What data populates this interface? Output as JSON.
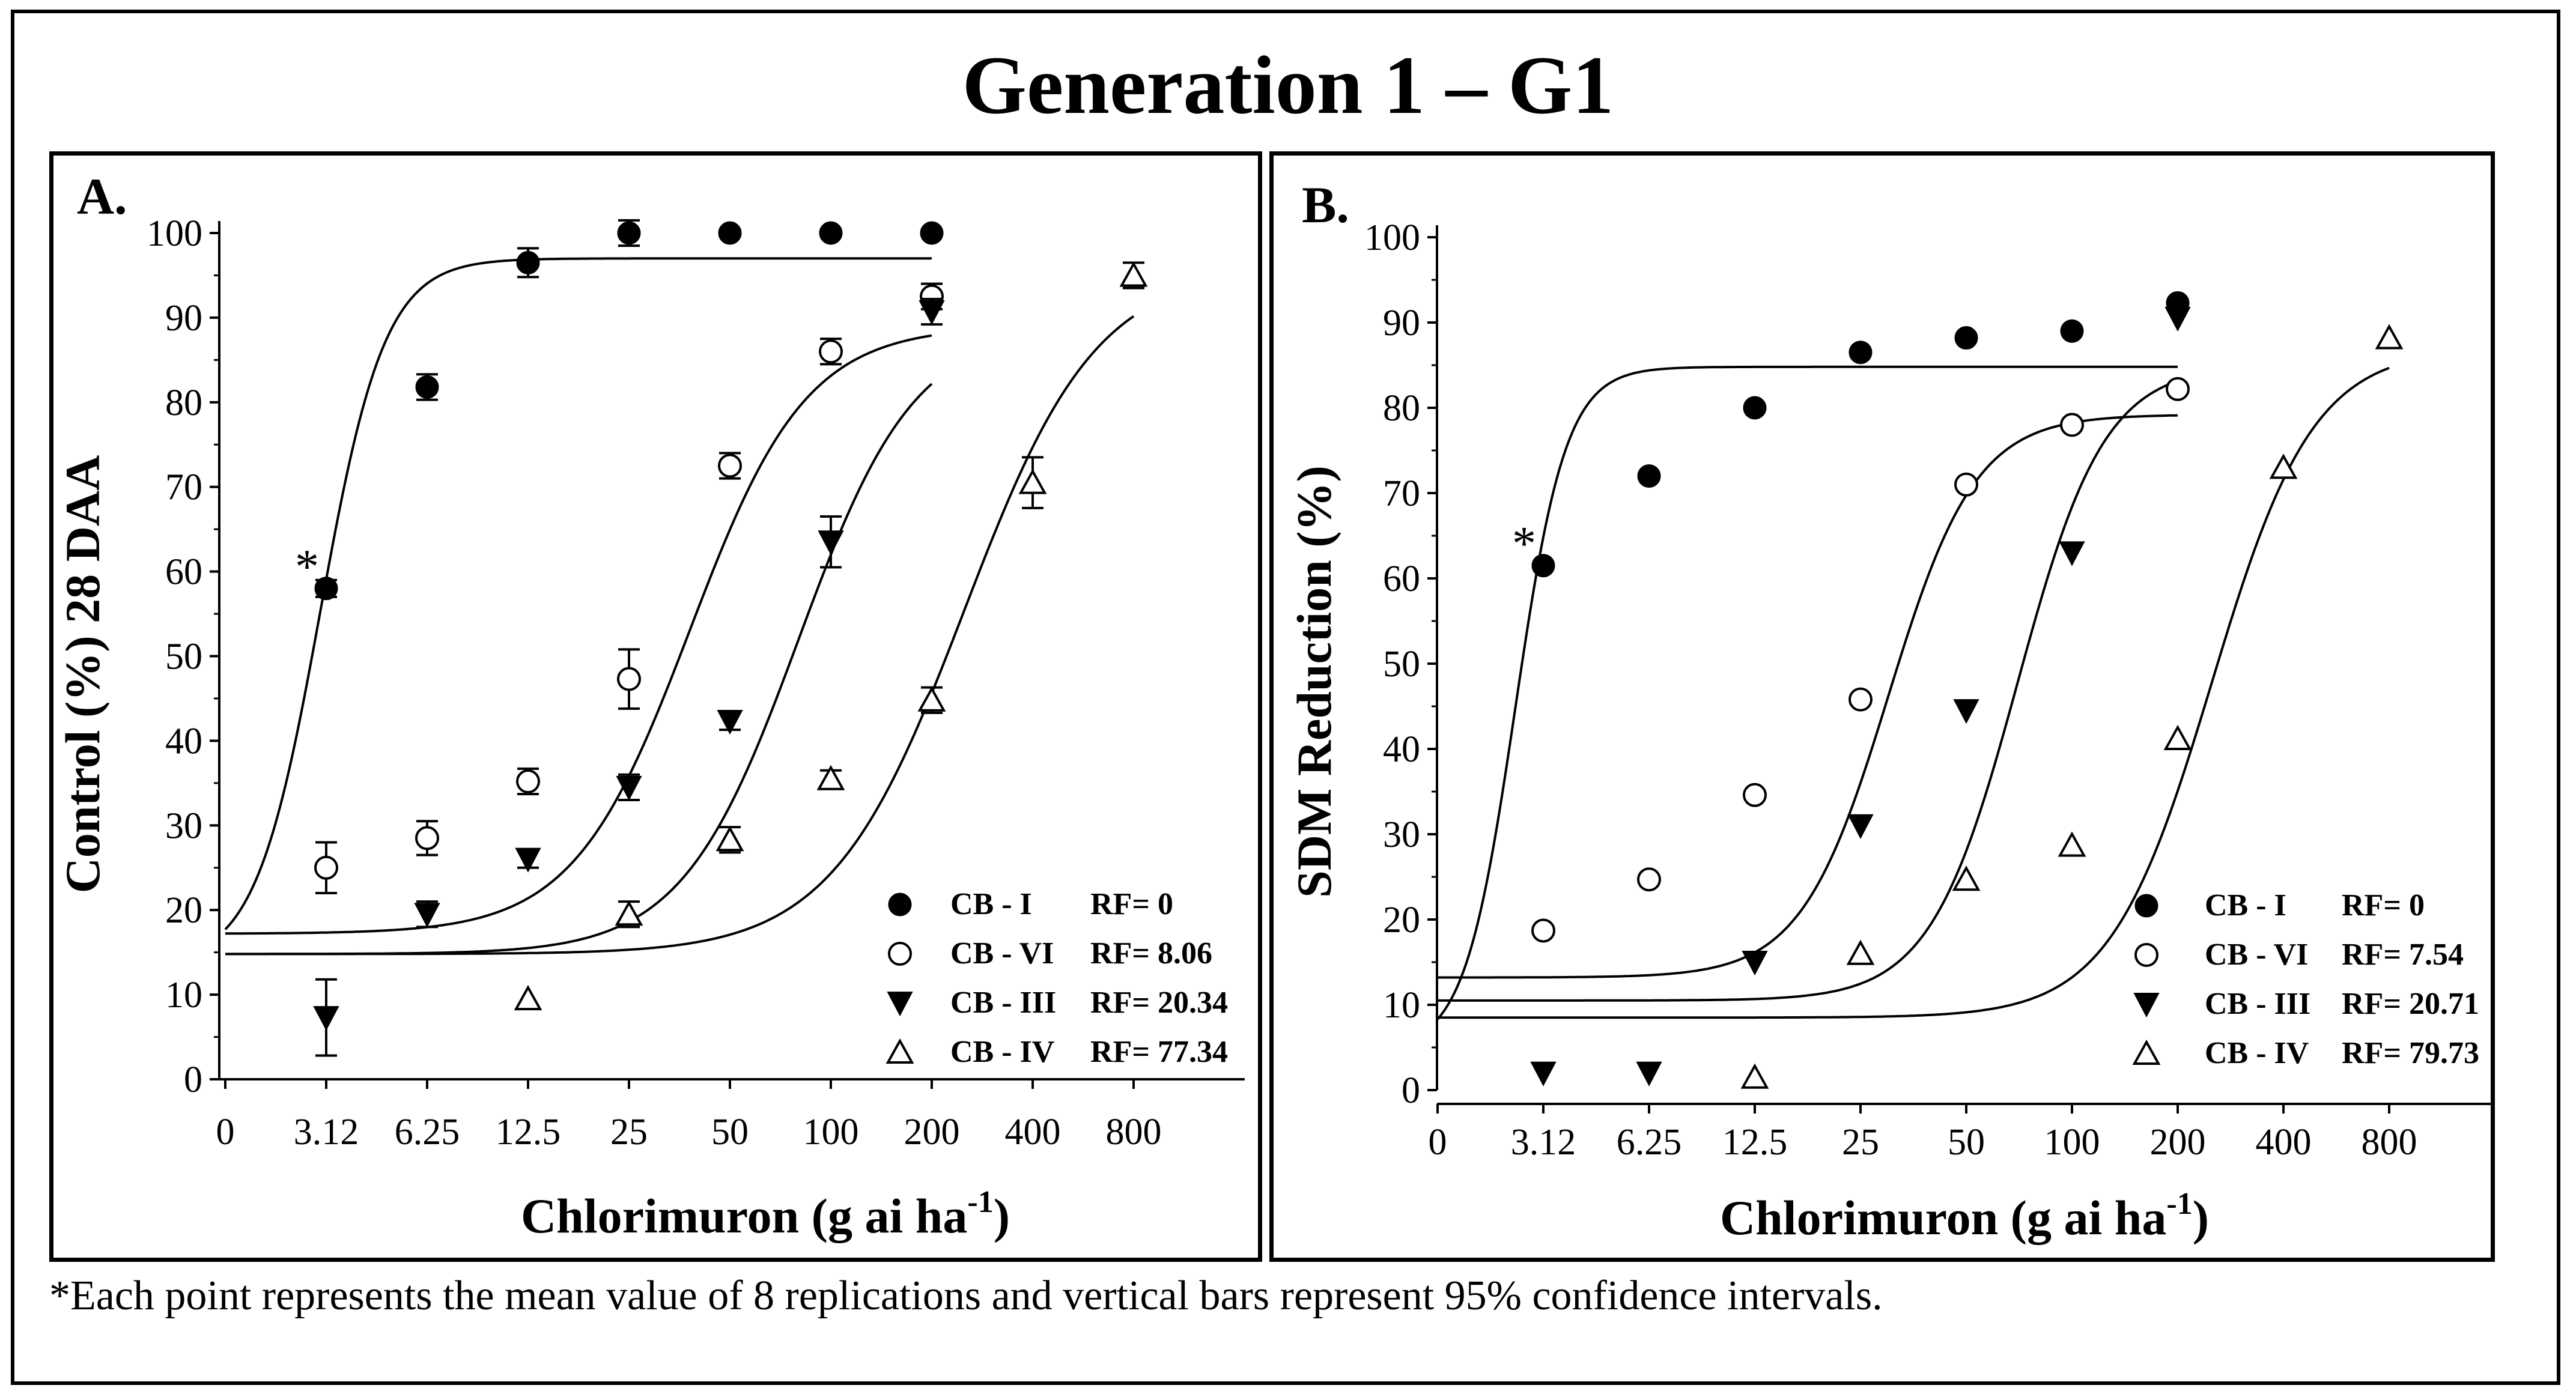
{
  "figure": {
    "title": "Generation 1 – G1",
    "footnote": "*Each point represents the mean value of 8 replications and vertical bars represent 95% confidence intervals."
  },
  "chart_data": [
    {
      "type": "scatter",
      "panel": "A.",
      "title": "",
      "xlabel": "Chlorimuron (g ai ha⁻¹)",
      "xlabel_main": "Chlorimuron (g ai ha",
      "xlabel_sup": "-1",
      "xlabel_close": ")",
      "ylabel": "Control (%) 28 DAA",
      "x_ticks": [
        "0",
        "3.12",
        "6.25",
        "12.5",
        "25",
        "50",
        "100",
        "200",
        "400",
        "800"
      ],
      "y_ticks": [
        "0",
        "10",
        "20",
        "30",
        "40",
        "50",
        "60",
        "70",
        "80",
        "90",
        "100"
      ],
      "ylim": [
        0,
        100
      ],
      "x_scale": "log2, 0 placed one doubling before 3.12",
      "annotation": {
        "text": "*",
        "x": "3.12",
        "y": 58
      },
      "legend_position": "bottom-right",
      "series": [
        {
          "name": "CB - I",
          "rf": "RF= 0",
          "marker": "filled-circle",
          "points": [
            {
              "x": "3.12",
              "y": 58,
              "ci": 1
            },
            {
              "x": "6.25",
              "y": 81.8,
              "ci": 1.5
            },
            {
              "x": "12.5",
              "y": 96.5,
              "ci": 1.7
            },
            {
              "x": "25",
              "y": 100,
              "ci": 1.5
            },
            {
              "x": "50",
              "y": 100,
              "ci": 0.5
            },
            {
              "x": "100",
              "y": 100,
              "ci": 0.5
            },
            {
              "x": "200",
              "y": 100,
              "ci": 0.5
            }
          ],
          "fit": {
            "min": 13.5,
            "max": 97,
            "ec50": 3.0,
            "slope": 4.5,
            "x_end": "200"
          }
        },
        {
          "name": "CB - VI",
          "rf": "RF= 8.06",
          "marker": "open-circle",
          "points": [
            {
              "x": "3.12",
              "y": 25,
              "ci": 3
            },
            {
              "x": "6.25",
              "y": 28.5,
              "ci": 2
            },
            {
              "x": "12.5",
              "y": 35.2,
              "ci": 1.5
            },
            {
              "x": "25",
              "y": 47.3,
              "ci": 3.5
            },
            {
              "x": "50",
              "y": 72.5,
              "ci": 1.5
            },
            {
              "x": "100",
              "y": 86,
              "ci": 1.5
            },
            {
              "x": "200",
              "y": 92.5,
              "ci": 1.5
            }
          ],
          "fit": {
            "min": 17.2,
            "max": 89,
            "ec50": 38,
            "slope": 2.5,
            "x_end": "200"
          }
        },
        {
          "name": "CB - III",
          "rf": "RF= 20.34",
          "marker": "filled-triangle-down",
          "points": [
            {
              "x": "3.12",
              "y": 7.3,
              "ci": 4.5
            },
            {
              "x": "6.25",
              "y": 19.5,
              "ci": 1.5
            },
            {
              "x": "12.5",
              "y": 26,
              "ci": 1
            },
            {
              "x": "25",
              "y": 34.5,
              "ci": 1.5
            },
            {
              "x": "50",
              "y": 42.3,
              "ci": 1
            },
            {
              "x": "100",
              "y": 63.5,
              "ci": 3
            },
            {
              "x": "200",
              "y": 90.7,
              "ci": 1.5
            }
          ],
          "fit": {
            "min": 14.8,
            "max": 89,
            "ec50": 80,
            "slope": 2.5,
            "x_end": "200"
          }
        },
        {
          "name": "CB - IV",
          "rf": "RF= 77.34",
          "marker": "open-triangle-up",
          "points": [
            {
              "x": "12.5",
              "y": 9.5,
              "ci": 0.5
            },
            {
              "x": "25",
              "y": 19.5,
              "ci": 1.5
            },
            {
              "x": "50",
              "y": 28.3,
              "ci": 1.5
            },
            {
              "x": "100",
              "y": 35.5,
              "ci": 1
            },
            {
              "x": "200",
              "y": 44.8,
              "ci": 1.5
            },
            {
              "x": "400",
              "y": 70.5,
              "ci": 3
            },
            {
              "x": "800",
              "y": 95,
              "ci": 1.5
            }
          ],
          "fit": {
            "min": 14.8,
            "max": 96,
            "ec50": 250,
            "slope": 2.2,
            "x_end": "800"
          }
        }
      ]
    },
    {
      "type": "scatter",
      "panel": "B.",
      "title": "",
      "xlabel": "Chlorimuron (g ai ha⁻¹)",
      "xlabel_main": "Chlorimuron (g ai ha",
      "xlabel_sup": "-1",
      "xlabel_close": ")",
      "ylabel": "SDM Reduction (%)",
      "x_ticks": [
        "0",
        "3.12",
        "6.25",
        "12.5",
        "25",
        "50",
        "100",
        "200",
        "400",
        "800"
      ],
      "y_ticks": [
        "0",
        "10",
        "20",
        "30",
        "40",
        "50",
        "60",
        "70",
        "80",
        "90",
        "100"
      ],
      "ylim": [
        0,
        100
      ],
      "x_scale": "log2, 0 placed one doubling before 3.12",
      "annotation": {
        "text": "*",
        "x": "3.12",
        "y": 61.5
      },
      "legend_position": "bottom-right",
      "series": [
        {
          "name": "CB - I",
          "rf": "RF= 0",
          "marker": "filled-circle",
          "points": [
            {
              "x": "3.12",
              "y": 61.5,
              "ci": 0.5
            },
            {
              "x": "6.25",
              "y": 72,
              "ci": 0.5
            },
            {
              "x": "12.5",
              "y": 80,
              "ci": 0.5
            },
            {
              "x": "25",
              "y": 86.5,
              "ci": 0.5
            },
            {
              "x": "50",
              "y": 88.2,
              "ci": 0.5
            },
            {
              "x": "100",
              "y": 89,
              "ci": 0.5
            },
            {
              "x": "200",
              "y": 92.3,
              "ci": 0.5
            }
          ],
          "fit": {
            "min": 4.7,
            "max": 84.8,
            "ec50": 2.6,
            "slope": 6,
            "x_end": "200"
          }
        },
        {
          "name": "CB - VI",
          "rf": "RF= 7.54",
          "marker": "open-circle",
          "points": [
            {
              "x": "3.12",
              "y": 18.7,
              "ci": 0.5
            },
            {
              "x": "6.25",
              "y": 24.7,
              "ci": 0.5
            },
            {
              "x": "12.5",
              "y": 34.6,
              "ci": 0.5
            },
            {
              "x": "25",
              "y": 45.8,
              "ci": 0.5
            },
            {
              "x": "50",
              "y": 71,
              "ci": 0.5
            },
            {
              "x": "100",
              "y": 78,
              "ci": 0.5
            },
            {
              "x": "200",
              "y": 82.2,
              "ci": 0.5
            }
          ],
          "fit": {
            "min": 13.2,
            "max": 79.2,
            "ec50": 30,
            "slope": 3.5,
            "x_end": "200"
          }
        },
        {
          "name": "CB - III",
          "rf": "RF= 20.71",
          "marker": "filled-triangle-down",
          "points": [
            {
              "x": "3.12",
              "y": 2,
              "ci": 0.5
            },
            {
              "x": "6.25",
              "y": 2,
              "ci": 0.5
            },
            {
              "x": "12.5",
              "y": 15,
              "ci": 0.5
            },
            {
              "x": "25",
              "y": 31,
              "ci": 0.5
            },
            {
              "x": "50",
              "y": 44.5,
              "ci": 0.5
            },
            {
              "x": "100",
              "y": 63,
              "ci": 0.5
            },
            {
              "x": "200",
              "y": 90.5,
              "ci": 0.5
            }
          ],
          "fit": {
            "min": 10.5,
            "max": 85,
            "ec50": 70,
            "slope": 3.5,
            "x_end": "200"
          }
        },
        {
          "name": "CB - IV",
          "rf": "RF= 79.73",
          "marker": "open-triangle-up",
          "points": [
            {
              "x": "12.5",
              "y": 1.5,
              "ci": 0.5
            },
            {
              "x": "25",
              "y": 16,
              "ci": 0.5
            },
            {
              "x": "50",
              "y": 24.7,
              "ci": 0.5
            },
            {
              "x": "100",
              "y": 28.7,
              "ci": 0.5
            },
            {
              "x": "200",
              "y": 41.2,
              "ci": 0.5
            },
            {
              "x": "400",
              "y": 73,
              "ci": 0.5
            },
            {
              "x": "800",
              "y": 88.2,
              "ci": 0.5
            }
          ],
          "fit": {
            "min": 8.5,
            "max": 87,
            "ec50": 250,
            "slope": 3,
            "x_end": "800"
          }
        }
      ]
    }
  ]
}
